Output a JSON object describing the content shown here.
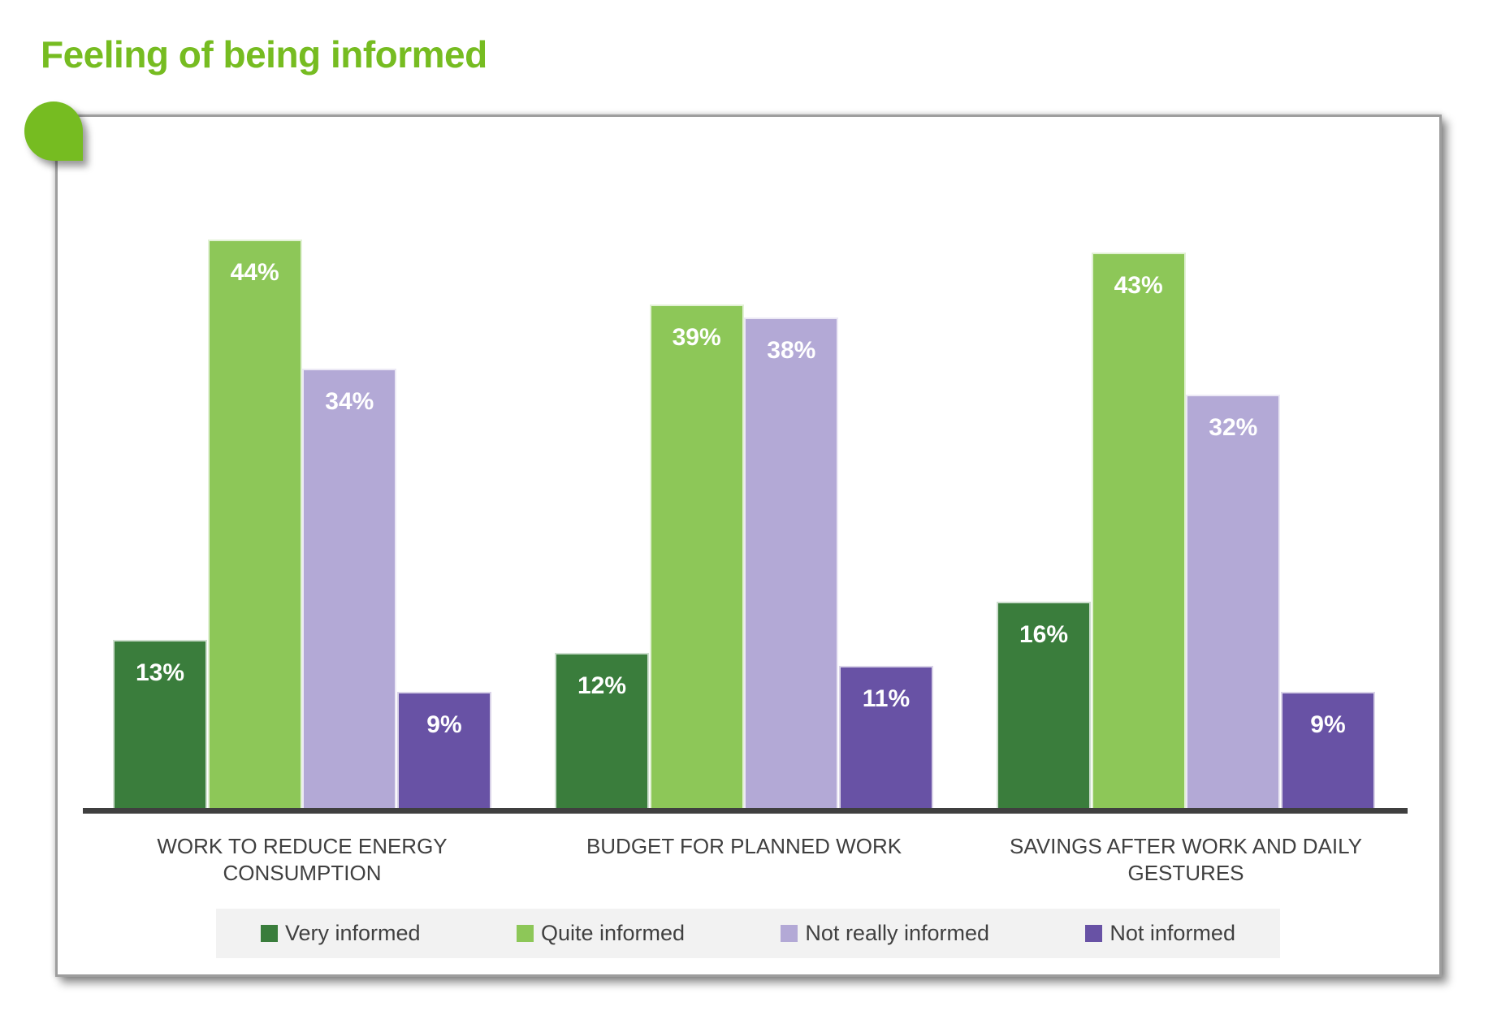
{
  "title": {
    "text": "Feeling of being informed"
  },
  "colors": {
    "accent_green": "#76BC21",
    "axis": "#3F3F3F",
    "category_text": "#404040",
    "legend_bg": "#F2F2F2",
    "value_label": "#FFFFFF",
    "panel_border": "#9E9E9E"
  },
  "chart_data": {
    "type": "bar",
    "title": "Feeling of being informed",
    "categories": [
      "WORK TO REDUCE ENERGY CONSUMPTION",
      "BUDGET FOR PLANNED WORK",
      "SAVINGS AFTER WORK AND DAILY GESTURES"
    ],
    "series": [
      {
        "name": "Very informed",
        "color": "#3A7D3C",
        "values": [
          13,
          12,
          16
        ]
      },
      {
        "name": "Quite informed",
        "color": "#8DC758",
        "values": [
          44,
          39,
          43
        ]
      },
      {
        "name": "Not really informed",
        "color": "#B3A9D6",
        "values": [
          34,
          38,
          32
        ]
      },
      {
        "name": "Not informed",
        "color": "#6852A5",
        "values": [
          9,
          11,
          9
        ]
      }
    ],
    "value_suffix": "%",
    "data_labels": "inside-top",
    "data_label_color": "#FFFFFF",
    "xlabel": "",
    "ylabel": "",
    "y_axis_visible": false,
    "gridlines": false,
    "ylim": [
      0,
      50
    ],
    "legend_position": "bottom"
  }
}
